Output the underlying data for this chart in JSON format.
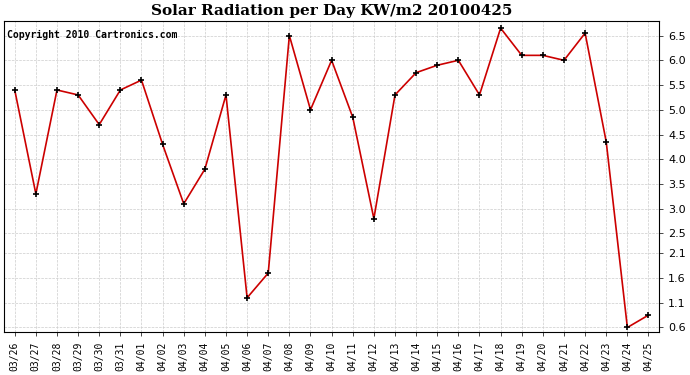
{
  "title": "Solar Radiation per Day KW/m2 20100425",
  "copyright": "Copyright 2010 Cartronics.com",
  "labels": [
    "03/26",
    "03/27",
    "03/28",
    "03/29",
    "03/30",
    "03/31",
    "04/01",
    "04/02",
    "04/03",
    "04/04",
    "04/05",
    "04/06",
    "04/07",
    "04/08",
    "04/09",
    "04/10",
    "04/11",
    "04/12",
    "04/13",
    "04/14",
    "04/15",
    "04/16",
    "04/17",
    "04/18",
    "04/19",
    "04/20",
    "04/21",
    "04/22",
    "04/23",
    "04/24",
    "04/25"
  ],
  "values": [
    5.4,
    3.3,
    5.4,
    5.3,
    4.7,
    5.4,
    5.6,
    4.3,
    3.1,
    3.8,
    5.3,
    1.2,
    1.7,
    6.5,
    5.0,
    6.0,
    4.85,
    2.8,
    5.3,
    5.75,
    5.9,
    6.0,
    5.3,
    6.65,
    6.1,
    6.1,
    6.0,
    6.55,
    4.35,
    0.6,
    0.85
  ],
  "line_color": "#cc0000",
  "marker": "+",
  "marker_color": "#000000",
  "marker_size": 5,
  "marker_linewidth": 1.2,
  "ylim": [
    0.5,
    6.8
  ],
  "yticks": [
    0.6,
    1.1,
    1.6,
    2.1,
    2.5,
    3.0,
    3.5,
    4.0,
    4.5,
    5.0,
    5.5,
    6.0,
    6.5
  ],
  "background_color": "#ffffff",
  "plot_bg_color": "#ffffff",
  "grid_color": "#cccccc",
  "title_fontsize": 11,
  "copyright_fontsize": 7,
  "tick_fontsize": 7,
  "ytick_fontsize": 8
}
